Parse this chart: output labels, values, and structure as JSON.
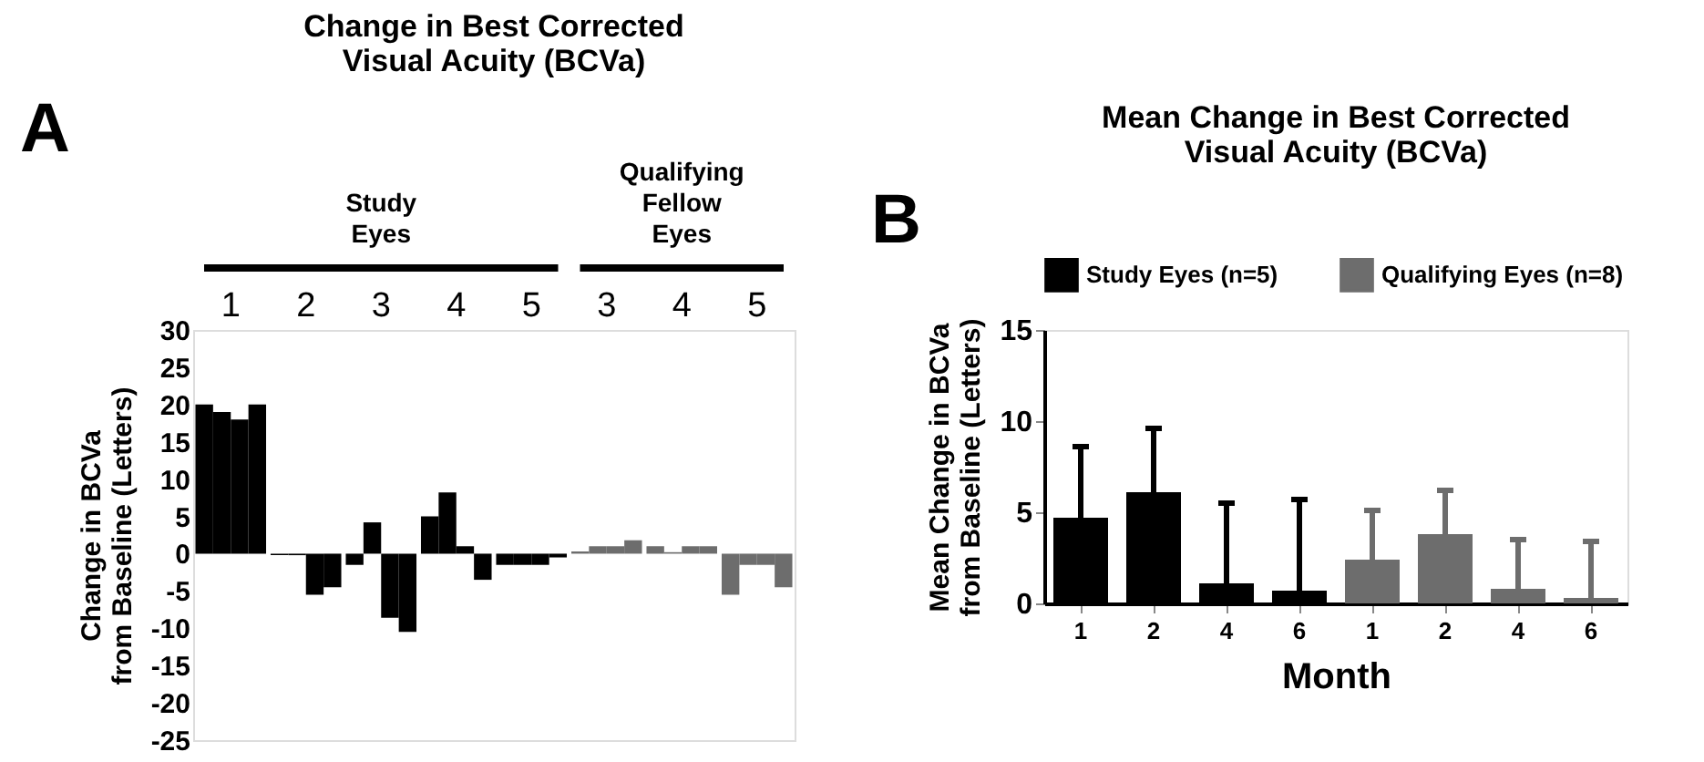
{
  "chart_data": [
    {
      "type": "bar",
      "title": "Change in Best Corrected\nVisual Acuity (BCVa)",
      "ylabel": "Change in BCVa\nfrom Baseline (Letters)",
      "categories": [
        "1",
        "2",
        "3",
        "4",
        "5",
        "3",
        "4",
        "5"
      ],
      "series": [
        {
          "colors": [
            "#000000",
            "#000000",
            "#000000",
            "#000000",
            "#000000",
            "#6d6d6d",
            "#6d6d6d",
            "#6d6d6d"
          ],
          "values": [
            20,
            -0.2,
            -1.5,
            5.0,
            -1.5,
            0.3,
            1.0,
            -5.5
          ]
        },
        {
          "colors": [
            "#000000",
            "#000000",
            "#000000",
            "#000000",
            "#000000",
            "#6d6d6d",
            "#6d6d6d",
            "#6d6d6d"
          ],
          "values": [
            19,
            -0.2,
            4.2,
            8.2,
            -1.5,
            1.0,
            0.2,
            -1.5
          ]
        },
        {
          "colors": [
            "#000000",
            "#000000",
            "#000000",
            "#000000",
            "#000000",
            "#6d6d6d",
            "#6d6d6d",
            "#6d6d6d"
          ],
          "values": [
            18,
            -5.5,
            -8.6,
            1.0,
            -1.5,
            1.0,
            1.0,
            -1.5
          ]
        },
        {
          "colors": [
            "#000000",
            "#000000",
            "#000000",
            "#000000",
            "#000000",
            "#6d6d6d",
            "#6d6d6d",
            "#6d6d6d"
          ],
          "values": [
            20,
            -4.5,
            -10.5,
            -3.5,
            -0.5,
            1.8,
            1.0,
            -4.5
          ]
        }
      ],
      "ylim": [
        -25,
        30
      ],
      "yticks": [
        -25,
        -20,
        -15,
        -10,
        -5,
        0,
        5,
        10,
        15,
        20,
        25,
        30
      ],
      "grid": false,
      "legend": false,
      "annotations": [
        "A",
        "Study Eyes",
        "Qualifying Fellow Eyes"
      ]
    },
    {
      "type": "bar",
      "title": "Mean Change in Best Corrected\nVisual Acuity (BCVa)",
      "ylabel": "Mean Change in BCVa\nfrom Baseline (Letters)",
      "xlabel": "Month",
      "categories": [
        "1",
        "2",
        "4",
        "6",
        "1",
        "2",
        "4",
        "6"
      ],
      "series": [
        {
          "name": "Study Eyes (n=5)",
          "color": "#000000",
          "values": [
            4.7,
            6.1,
            1.1,
            0.7,
            null,
            null,
            null,
            null
          ],
          "errors": [
            [
              4.7,
              8.6
            ],
            [
              6.1,
              9.6
            ],
            [
              1.1,
              5.5
            ],
            [
              0.7,
              5.7
            ],
            null,
            null,
            null,
            null
          ]
        },
        {
          "name": "Qualifying Eyes (n=8)",
          "color": "#6d6d6d",
          "values": [
            null,
            null,
            null,
            null,
            2.4,
            3.8,
            0.8,
            0.3
          ],
          "errors": [
            null,
            null,
            null,
            null,
            [
              2.4,
              5.1
            ],
            [
              3.8,
              6.2
            ],
            [
              0.8,
              3.5
            ],
            [
              0.3,
              3.4
            ]
          ]
        }
      ],
      "ylim": [
        0,
        15
      ],
      "yticks": [
        0,
        5,
        10,
        15
      ],
      "grid": false,
      "legend": "top",
      "annotations": [
        "B"
      ]
    }
  ]
}
